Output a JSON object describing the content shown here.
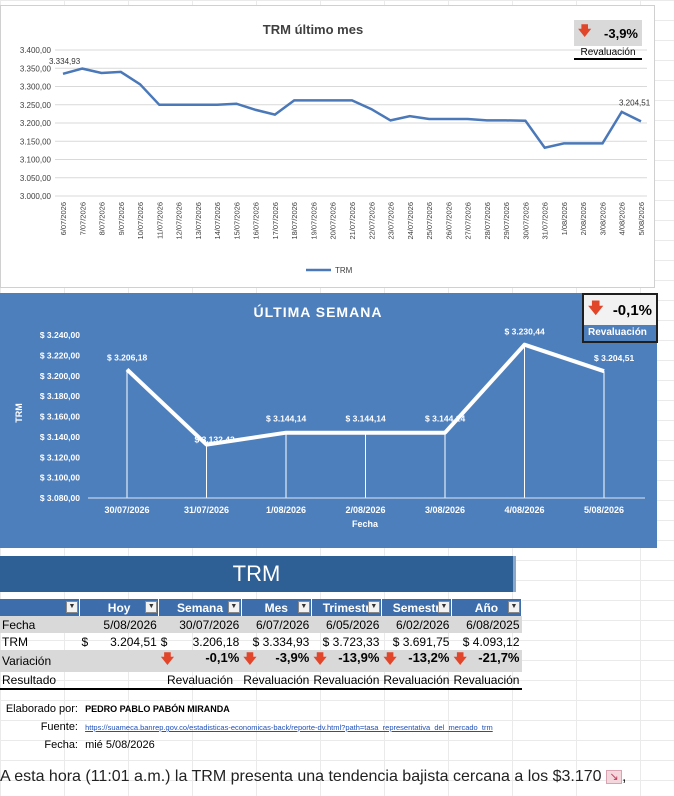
{
  "chart1": {
    "title": "TRM último mes",
    "badge_value": "-3,9%",
    "badge_label": "Revaluación",
    "y_ticks": [
      "3.400,00",
      "3.350,00",
      "3.300,00",
      "3.250,00",
      "3.200,00",
      "3.150,00",
      "3.100,00",
      "3.050,00",
      "3.000,00"
    ],
    "first_label": "3.334,93",
    "last_label": "3.204,51",
    "legend": "TRM"
  },
  "chart2": {
    "title": "ÚLTIMA SEMANA",
    "badge_value": "-0,1%",
    "badge_label": "Revaluación",
    "y_ticks": [
      "$ 3.240,00",
      "$ 3.220,00",
      "$ 3.200,00",
      "$ 3.180,00",
      "$ 3.160,00",
      "$ 3.140,00",
      "$ 3.120,00",
      "$ 3.100,00",
      "$ 3.080,00"
    ],
    "ylabel": "TRM",
    "xlabel": "Fecha"
  },
  "chart_data": [
    {
      "type": "line",
      "title": "TRM último mes",
      "ylim": [
        3000,
        3400
      ],
      "legend": "bottom",
      "categories": [
        "6/07/2026",
        "7/07/2026",
        "8/07/2026",
        "9/07/2026",
        "10/07/2026",
        "11/07/2026",
        "12/07/2026",
        "13/07/2026",
        "14/07/2026",
        "15/07/2026",
        "16/07/2026",
        "17/07/2026",
        "18/07/2026",
        "19/07/2026",
        "20/07/2026",
        "21/07/2026",
        "22/07/2026",
        "23/07/2026",
        "24/07/2026",
        "25/07/2026",
        "26/07/2026",
        "27/07/2026",
        "28/07/2026",
        "29/07/2026",
        "30/07/2026",
        "31/07/2026",
        "1/08/2026",
        "2/08/2026",
        "3/08/2026",
        "4/08/2026",
        "5/08/2026"
      ],
      "series": [
        {
          "name": "TRM",
          "values": [
            3334.93,
            3349,
            3337,
            3340,
            3306,
            3250,
            3250,
            3250,
            3250,
            3253,
            3236,
            3223,
            3262,
            3262,
            3262,
            3262,
            3238,
            3207,
            3219,
            3211,
            3211,
            3211,
            3207,
            3207,
            3206.18,
            3132.42,
            3144.14,
            3144.14,
            3144.14,
            3230.44,
            3204.51
          ]
        }
      ]
    },
    {
      "type": "line",
      "title": "ÚLTIMA SEMANA",
      "xlabel": "Fecha",
      "ylabel": "TRM",
      "ylim": [
        3080,
        3240
      ],
      "categories": [
        "30/07/2026",
        "31/07/2026",
        "1/08/2026",
        "2/08/2026",
        "3/08/2026",
        "4/08/2026",
        "5/08/2026"
      ],
      "series": [
        {
          "values": [
            3206.18,
            3132.42,
            3144.14,
            3144.14,
            3144.14,
            3230.44,
            3204.51
          ]
        }
      ],
      "data_labels": [
        "$ 3.206,18",
        "$ 3.132,42",
        "$ 3.144,14",
        "$ 3.144,14",
        "$ 3.144,14",
        "$ 3.230,44",
        "$ 3.204,51"
      ]
    }
  ],
  "banner": "TRM",
  "table": {
    "headers": [
      "",
      "Hoy",
      "Semana",
      "Mes",
      "Trimestr",
      "Semestr",
      "Año"
    ],
    "fecha": {
      "label": "Fecha",
      "values": [
        "5/08/2026",
        "30/07/2026",
        "6/07/2026",
        "6/05/2026",
        "6/02/2026",
        "6/08/2025"
      ]
    },
    "trm": {
      "label": "TRM",
      "values": [
        "3.204,51",
        "3.206,18",
        "3.334,93",
        "3.723,33",
        "3.691,75",
        "4.093,12"
      ],
      "currency": "$"
    },
    "variacion": {
      "label": "Variación",
      "values": [
        "-0,1%",
        "-3,9%",
        "-13,9%",
        "-13,2%",
        "-21,7%"
      ]
    },
    "resultado": {
      "label": "Resultado",
      "values": [
        "Revaluación",
        "Revaluación",
        "Revaluación",
        "Revaluación",
        "Revaluación"
      ]
    }
  },
  "info": {
    "elaborado_label": "Elaborado por:",
    "elaborado_value": "PEDRO PABLO PABÓN MIRANDA",
    "fuente_label": "Fuente:",
    "fuente_value": "https://suameca.banrep.gov.co/estadisticas-economicas-back/reporte-dv.html?path=tasa_representativa_del_mercado_trm",
    "fecha_label": "Fecha:",
    "fecha_value": "mié 5/08/2026"
  },
  "caption": "A esta hora (11:01 a.m.) la TRM presenta una tendencia bajista cercana a los $3.170",
  "colors": {
    "line": "#4a78b8",
    "panel": "#4e7fbd",
    "header": "#3d6eab",
    "arrow": "#e1462b",
    "banner": "#2e5f95"
  }
}
